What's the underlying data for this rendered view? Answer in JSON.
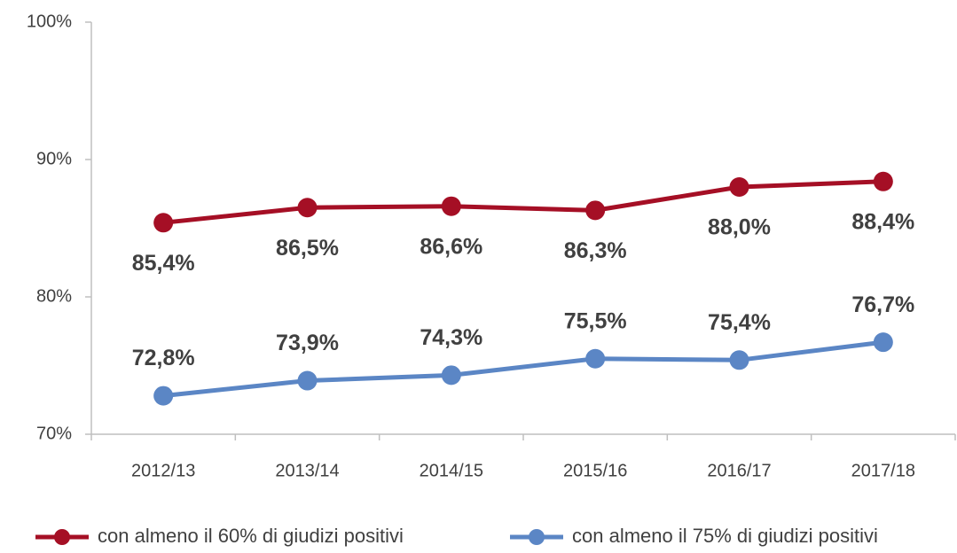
{
  "chart_data": {
    "type": "line",
    "categories": [
      "2012/13",
      "2013/14",
      "2014/15",
      "2015/16",
      "2016/17",
      "2017/18"
    ],
    "series": [
      {
        "name": "con almeno il 60% di giudizi positivi",
        "color": "#a50f25",
        "values": [
          85.4,
          86.5,
          86.6,
          86.3,
          88.0,
          88.4
        ],
        "value_labels": [
          "85,4%",
          "86,5%",
          "86,6%",
          "86,3%",
          "88,0%",
          "88,4%"
        ]
      },
      {
        "name": "con almeno il 75% di giudizi positivi",
        "color": "#5b86c5",
        "values": [
          72.8,
          73.9,
          74.3,
          75.5,
          75.4,
          76.7
        ],
        "value_labels": [
          "72,8%",
          "73,9%",
          "74,3%",
          "75,5%",
          "75,4%",
          "76,7%"
        ]
      }
    ],
    "ylim": [
      70,
      100
    ],
    "yticks": [
      {
        "value": 70,
        "label": "70%"
      },
      {
        "value": 80,
        "label": "80%"
      },
      {
        "value": 90,
        "label": "90%"
      },
      {
        "value": 100,
        "label": "100%"
      }
    ],
    "grid": false,
    "legend": "bottom"
  }
}
